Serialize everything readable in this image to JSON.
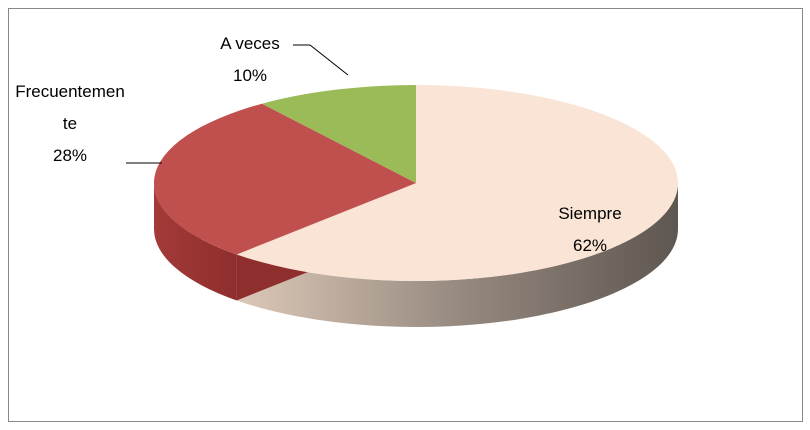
{
  "chart_data": {
    "type": "pie3d",
    "categories": [
      "Siempre",
      "Frecuentemente",
      "A veces"
    ],
    "values": [
      62,
      28,
      10
    ],
    "value_labels": [
      "62%",
      "28%",
      "10%"
    ],
    "colors": [
      "#f9e4d5",
      "#c0504d",
      "#9bbb59"
    ]
  }
}
